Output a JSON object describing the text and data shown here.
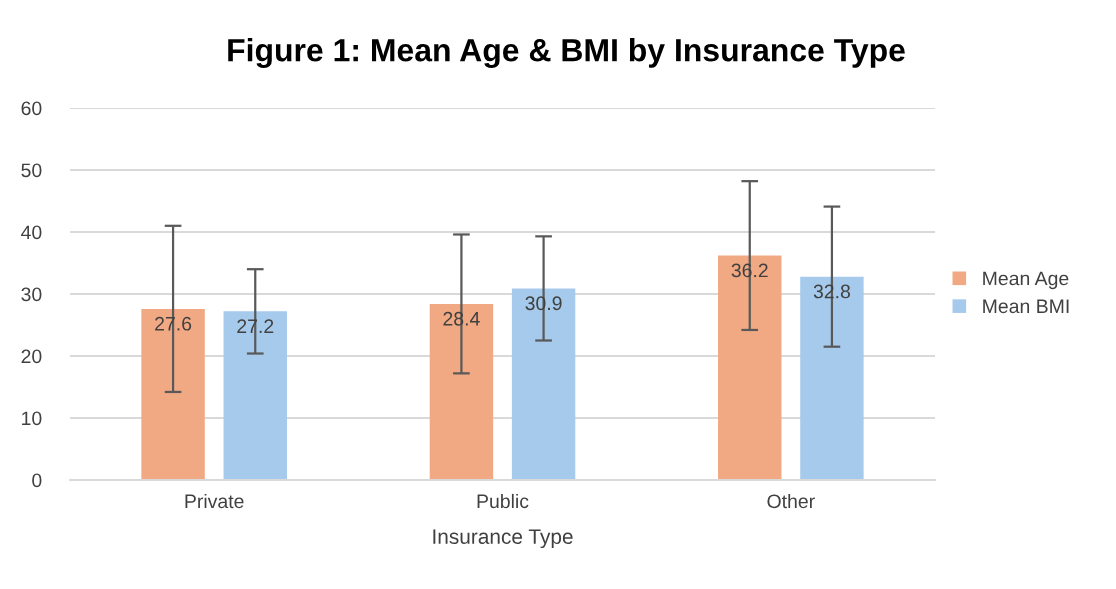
{
  "chart_data": {
    "type": "bar",
    "title": "Figure 1: Mean Age & BMI by Insurance Type",
    "xlabel": "Insurance Type",
    "categories": [
      "Private",
      "Public",
      "Other"
    ],
    "series": [
      {
        "name": "Mean Age",
        "color": "#f1a983",
        "values": [
          27.6,
          28.4,
          36.2
        ],
        "errors": [
          13.4,
          11.2,
          12.0
        ]
      },
      {
        "name": "Mean BMI",
        "color": "#a6caec",
        "values": [
          27.2,
          30.9,
          32.8
        ],
        "errors": [
          6.8,
          8.4,
          11.3
        ]
      }
    ],
    "ylim": [
      0,
      60
    ],
    "yticks": [
      0,
      10,
      20,
      30,
      40,
      50,
      60
    ],
    "grid": "y",
    "legend": "right",
    "data_labels": true
  }
}
